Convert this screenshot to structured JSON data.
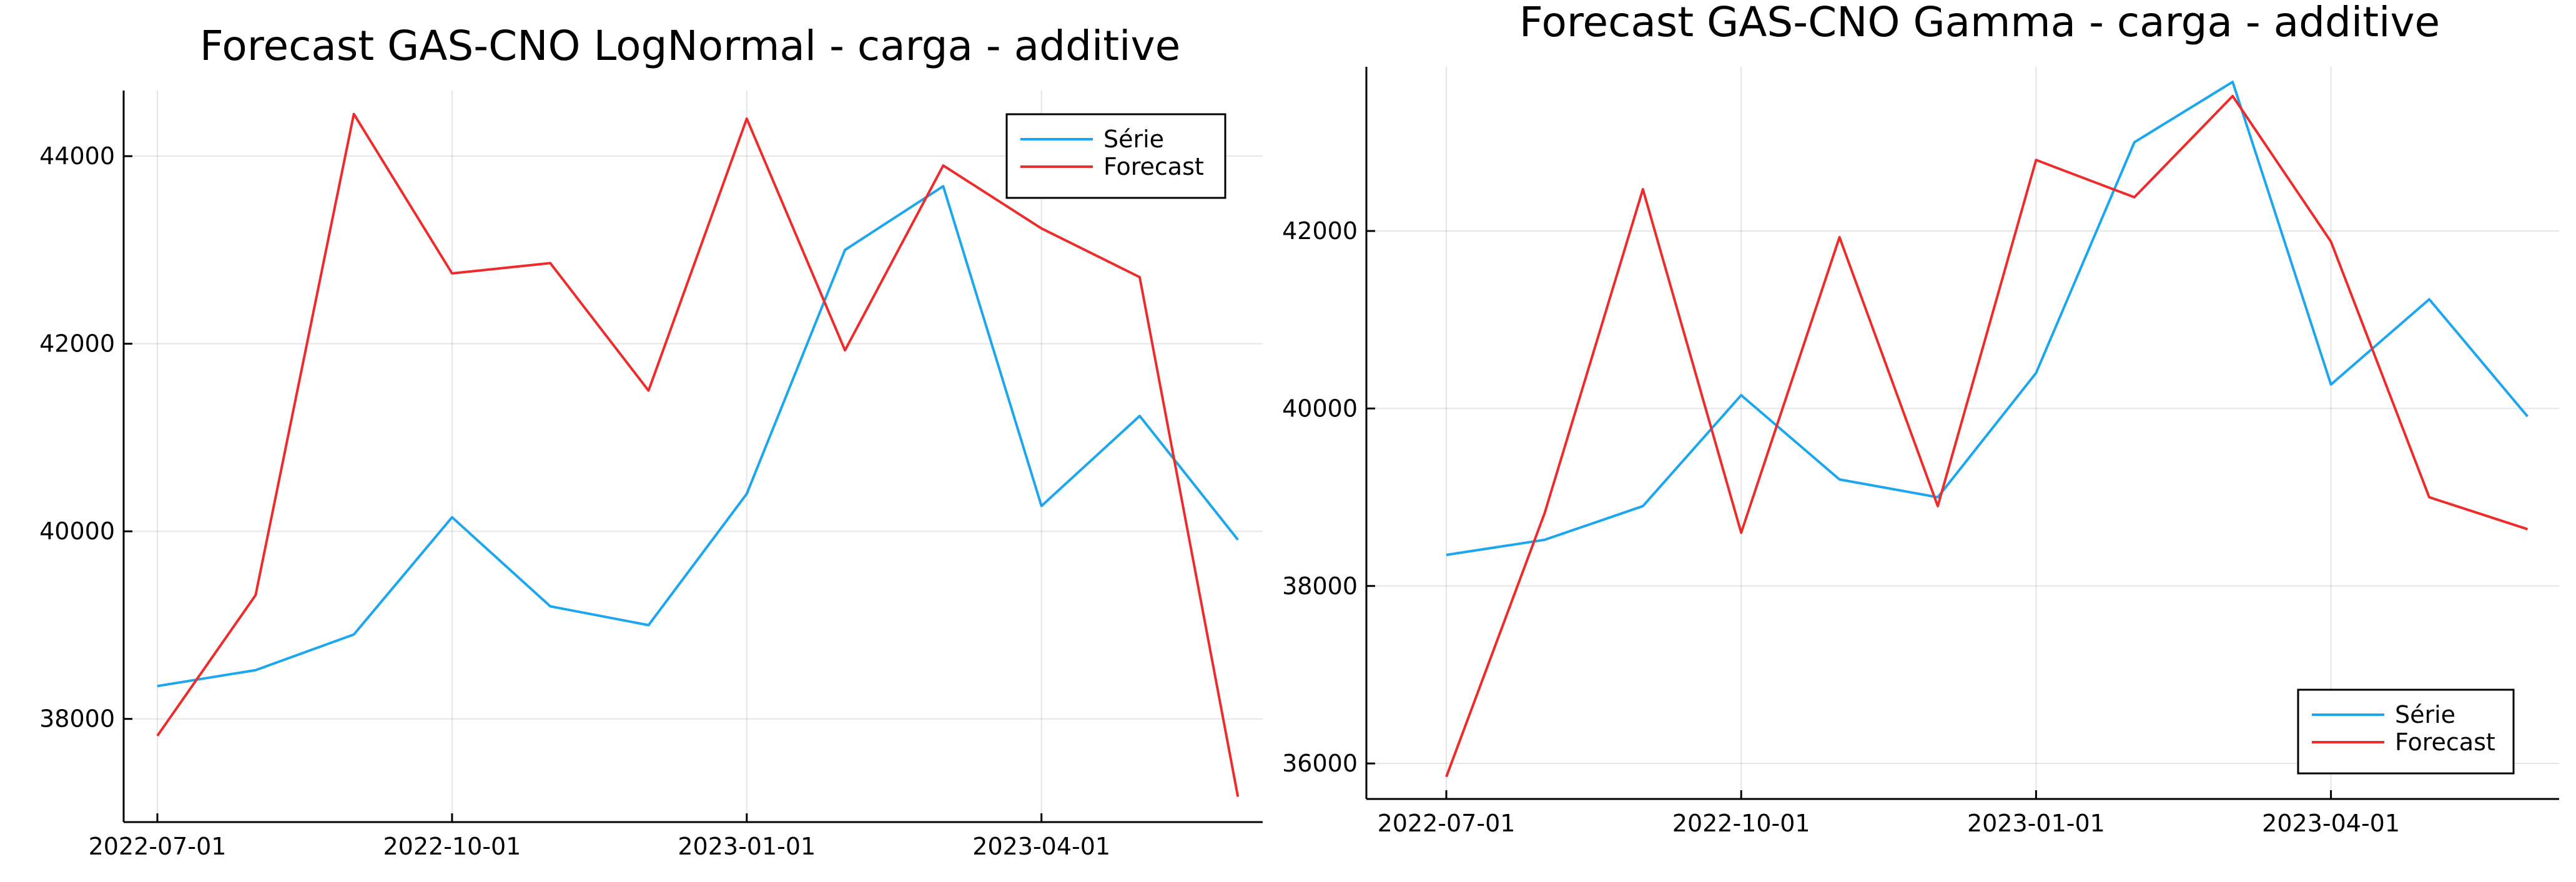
{
  "chart_data": [
    {
      "type": "line",
      "title": "Forecast GAS-CNO LogNormal - carga - additive",
      "xlabel": "",
      "ylabel": "",
      "x": [
        "2022-07-01",
        "2022-08-01",
        "2022-09-01",
        "2022-10-01",
        "2022-11-01",
        "2022-12-01",
        "2023-01-01",
        "2023-02-01",
        "2023-03-01",
        "2023-04-01",
        "2023-05-01",
        "2023-06-01"
      ],
      "xticks": [
        "2022-07-01",
        "2022-10-01",
        "2023-01-01",
        "2023-04-01"
      ],
      "yticks": [
        38000,
        40000,
        42000,
        44000
      ],
      "ylim": [
        36900,
        44700
      ],
      "grid": true,
      "legend_position": "top-right",
      "series": [
        {
          "name": "Série",
          "color": "#1ba6ef",
          "values": [
            38350,
            38520,
            38900,
            40150,
            39200,
            39000,
            40400,
            43000,
            43680,
            40270,
            41230,
            39910
          ]
        },
        {
          "name": "Forecast",
          "color": "#ee2b2b",
          "values": [
            37820,
            39320,
            44450,
            42750,
            42860,
            41500,
            44400,
            41930,
            43900,
            43230,
            42710,
            37170
          ]
        }
      ]
    },
    {
      "type": "line",
      "title": "Forecast GAS-CNO Gamma - carga - additive",
      "xlabel": "",
      "ylabel": "",
      "x": [
        "2022-07-01",
        "2022-08-01",
        "2022-09-01",
        "2022-10-01",
        "2022-11-01",
        "2022-12-01",
        "2023-01-01",
        "2023-02-01",
        "2023-03-01",
        "2023-04-01",
        "2023-05-01",
        "2023-06-01"
      ],
      "xticks": [
        "2022-07-01",
        "2022-10-01",
        "2023-01-01",
        "2023-04-01"
      ],
      "yticks": [
        36000,
        38000,
        40000,
        42000
      ],
      "ylim": [
        35600,
        43850
      ],
      "grid": true,
      "legend_position": "bottom-right",
      "series": [
        {
          "name": "Série",
          "color": "#1ba6ef",
          "values": [
            38350,
            38520,
            38900,
            40150,
            39200,
            39000,
            40400,
            43000,
            43680,
            40270,
            41230,
            39910
          ]
        },
        {
          "name": "Forecast",
          "color": "#ee2b2b",
          "values": [
            35850,
            38820,
            42470,
            38600,
            41930,
            38900,
            42800,
            42380,
            43520,
            41880,
            39000,
            38640
          ]
        }
      ]
    }
  ]
}
